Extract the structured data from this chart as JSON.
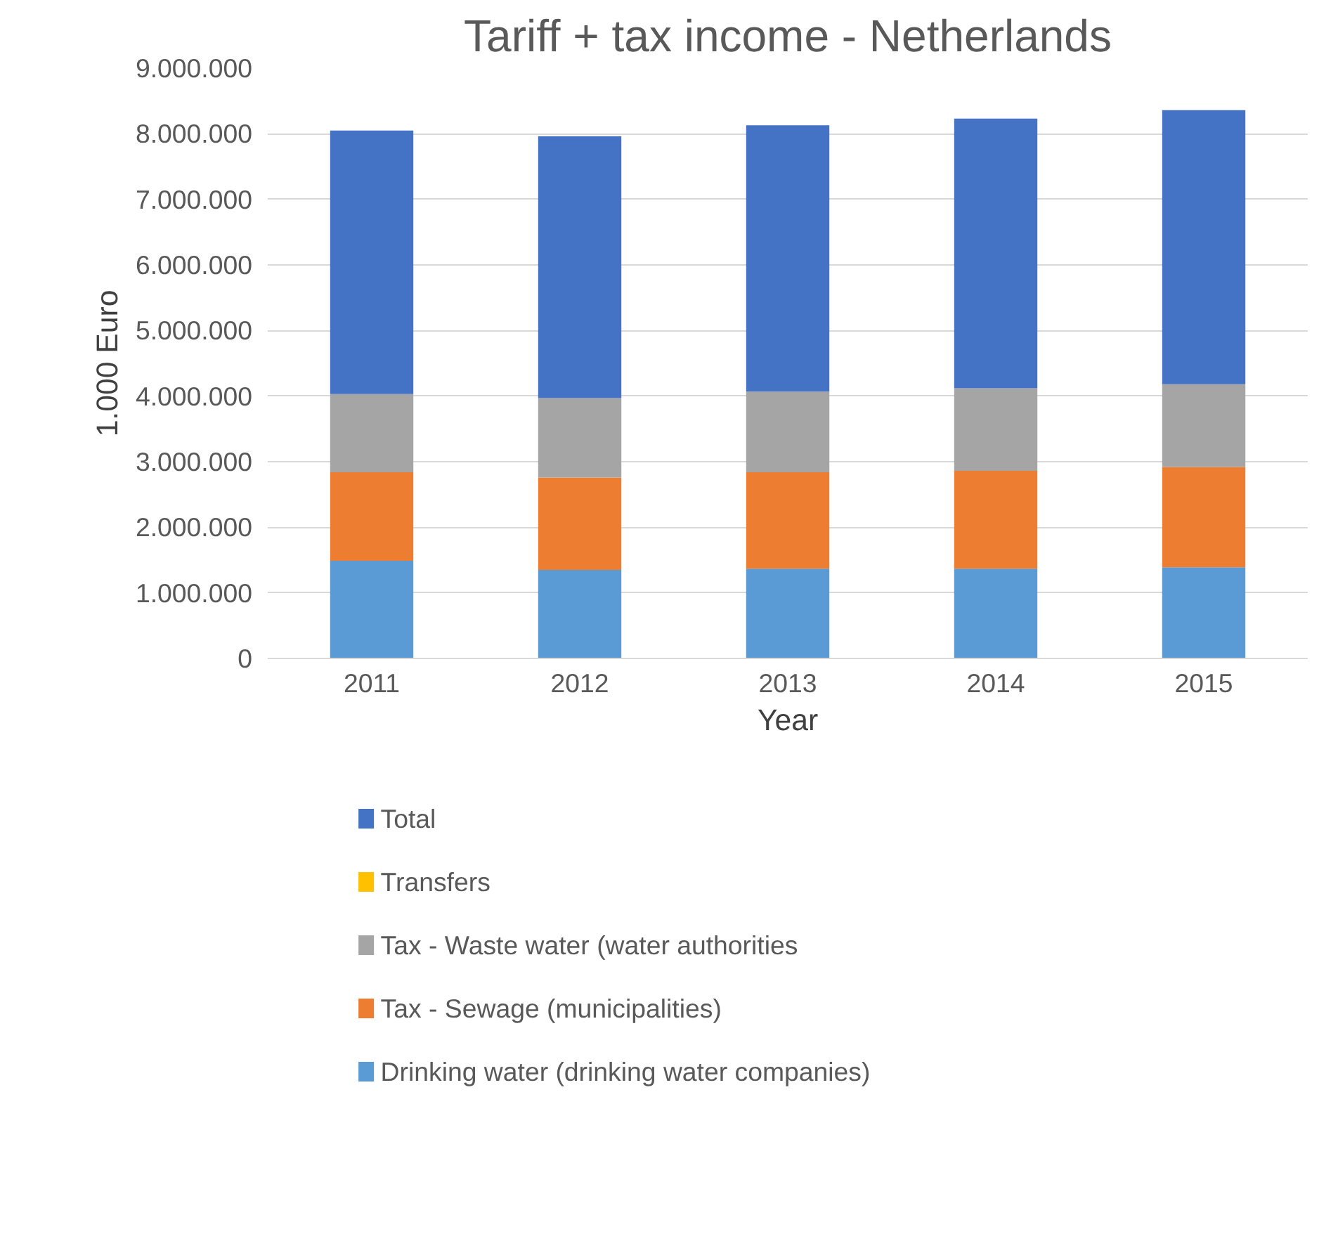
{
  "chart_data": {
    "type": "bar",
    "title": "Tariff + tax income - Netherlands",
    "xlabel": "Year",
    "ylabel": "1.000 Euro",
    "categories": [
      "2011",
      "2012",
      "2013",
      "2014",
      "2015"
    ],
    "stacked": true,
    "series": [
      {
        "name": "Drinking water (drinking water companies)",
        "color": "#5b9bd5",
        "values": [
          1490000,
          1350000,
          1370000,
          1370000,
          1390000
        ]
      },
      {
        "name": "Tax - Sewage (municipalities)",
        "color": "#ed7d31",
        "values": [
          1350000,
          1410000,
          1470000,
          1490000,
          1530000
        ]
      },
      {
        "name": "Tax - Waste water (water authorities",
        "color": "#a5a5a5",
        "values": [
          1190000,
          1210000,
          1230000,
          1260000,
          1260000
        ]
      },
      {
        "name": "Transfers",
        "color": "#ffc000",
        "values": [
          0,
          0,
          0,
          0,
          0
        ]
      },
      {
        "name": "Total",
        "color": "#4472c4",
        "values": [
          4020000,
          3990000,
          4060000,
          4110000,
          4180000
        ]
      }
    ],
    "ylim": [
      0,
      9000000
    ],
    "yticks": [
      {
        "value": 0,
        "label": "0"
      },
      {
        "value": 1000000,
        "label": "1.000.000"
      },
      {
        "value": 2000000,
        "label": "2.000.000"
      },
      {
        "value": 3000000,
        "label": "3.000.000"
      },
      {
        "value": 4000000,
        "label": "4.000.000"
      },
      {
        "value": 5000000,
        "label": "5.000.000"
      },
      {
        "value": 6000000,
        "label": "6.000.000"
      },
      {
        "value": 7000000,
        "label": "7.000.000"
      },
      {
        "value": 8000000,
        "label": "8.000.000"
      },
      {
        "value": 9000000,
        "label": "9.000.000"
      }
    ],
    "grid": "y",
    "legend": "bottom"
  }
}
